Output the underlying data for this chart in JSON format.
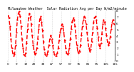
{
  "title": "Milwaukee Weather  Solar Radiation Avg per Day W/m2/minute",
  "line_color": "#FF0000",
  "bg_color": "#FFFFFF",
  "plot_bg": "#FFFFFF",
  "grid_color": "#AAAAAA",
  "y_values": [
    7.2,
    6.8,
    5.5,
    3.5,
    2.0,
    1.2,
    0.8,
    1.0,
    2.5,
    4.5,
    6.5,
    7.5,
    7.8,
    7.0,
    5.5,
    3.5,
    2.0,
    1.0,
    0.8,
    1.2,
    2.8,
    5.0,
    6.8,
    7.5,
    7.0,
    5.8,
    4.0,
    2.5,
    1.5,
    1.0,
    1.2,
    2.0,
    3.5,
    5.0,
    6.5,
    7.0,
    6.2,
    4.8,
    3.0,
    1.8,
    1.0,
    0.8,
    1.0,
    1.5,
    2.5,
    3.5,
    4.0,
    3.5,
    2.5,
    1.5,
    1.0,
    0.8,
    0.8,
    1.2,
    2.0,
    3.2,
    4.5,
    5.2,
    5.8,
    5.5,
    4.5,
    3.2,
    2.0,
    1.2,
    1.0,
    1.2,
    2.0,
    3.5,
    5.0,
    6.2,
    6.8,
    6.5,
    5.5,
    4.0,
    2.5,
    1.5,
    1.2,
    1.5,
    2.5,
    4.0,
    5.5,
    6.5,
    7.0,
    6.8,
    5.8,
    4.5,
    3.2,
    2.0,
    1.5,
    1.8,
    3.0,
    4.5,
    6.0,
    6.8,
    7.0,
    6.5,
    5.2,
    3.8,
    2.5,
    2.0,
    2.8,
    4.2,
    5.8,
    6.5,
    6.2,
    5.2,
    4.0,
    3.0,
    2.5,
    2.8,
    3.8,
    5.0,
    6.0,
    6.5,
    5.8
  ],
  "ylim": [
    0,
    8
  ],
  "ytick_labels": [
    "8",
    "7",
    "6",
    "5",
    "4",
    "3",
    "2",
    "1",
    "0"
  ],
  "ytick_values": [
    8,
    7,
    6,
    5,
    4,
    3,
    2,
    1,
    0
  ],
  "title_fontsize": 3.5,
  "tick_fontsize": 3.0,
  "grid_xtick_count": 12,
  "line_width": 1.0,
  "dash_on": 4,
  "dash_off": 2
}
